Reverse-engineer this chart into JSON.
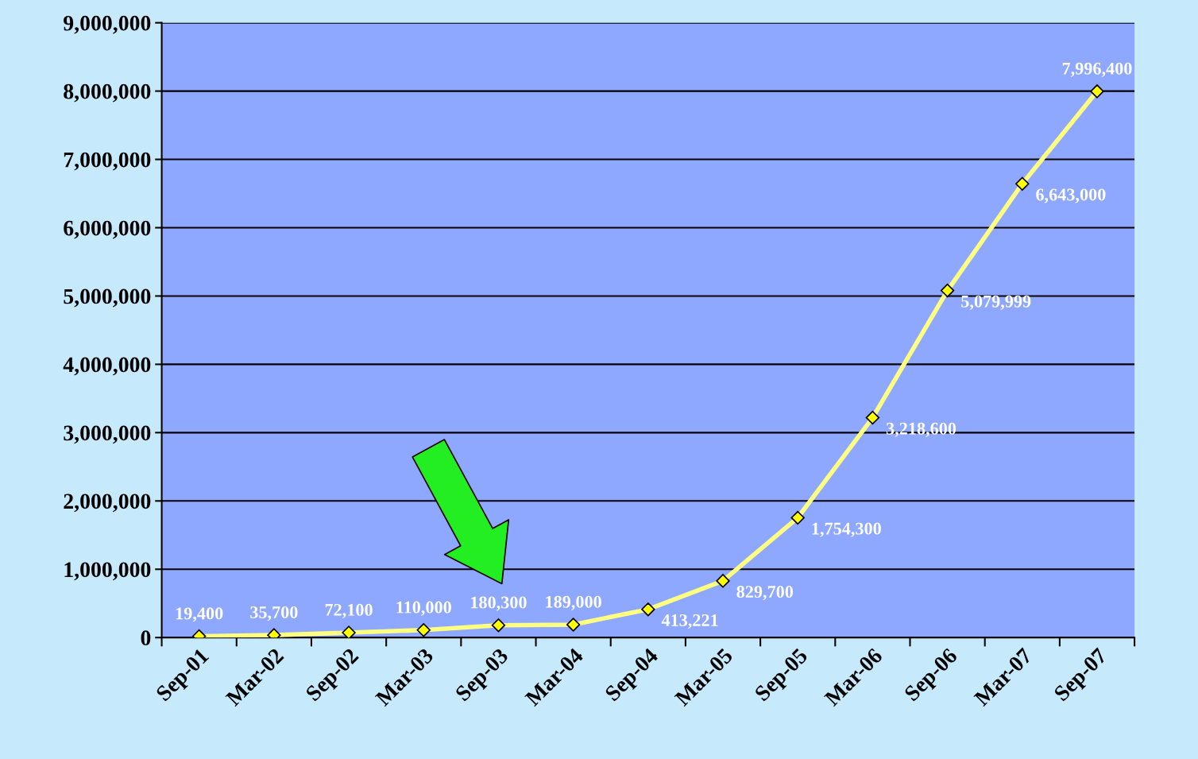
{
  "chart_data": {
    "type": "line",
    "categories": [
      "Sep-01",
      "Mar-02",
      "Sep-02",
      "Mar-03",
      "Sep-03",
      "Mar-04",
      "Sep-04",
      "Mar-05",
      "Sep-05",
      "Mar-06",
      "Sep-06",
      "Mar-07",
      "Sep-07"
    ],
    "series": [
      {
        "color": "#ffff80",
        "values": [
          19400,
          35700,
          72100,
          110000,
          180300,
          189000,
          413221,
          829700,
          1754300,
          3218600,
          5079999,
          6643000,
          7996400
        ],
        "value_labels": [
          "19,400",
          "35,700",
          "72,100",
          "110,000",
          "180,300",
          "189,000",
          "413,221",
          "829,700",
          "1,754,300",
          "3,218,600",
          "5,079,999",
          "6,643,000",
          "7,996,400"
        ]
      }
    ],
    "ylim": [
      0,
      9000000
    ],
    "yticks": [
      {
        "value": 0,
        "label": "0"
      },
      {
        "value": 1000000,
        "label": "1,000,000"
      },
      {
        "value": 2000000,
        "label": "2,000,000"
      },
      {
        "value": 3000000,
        "label": "3,000,000"
      },
      {
        "value": 4000000,
        "label": "4,000,000"
      },
      {
        "value": 5000000,
        "label": "5,000,000"
      },
      {
        "value": 6000000,
        "label": "6,000,000"
      },
      {
        "value": 7000000,
        "label": "7,000,000"
      },
      {
        "value": 8000000,
        "label": "8,000,000"
      },
      {
        "value": 9000000,
        "label": "9,000,000"
      }
    ],
    "grid": "y",
    "marker": "diamond",
    "line_style": "solid"
  }
}
